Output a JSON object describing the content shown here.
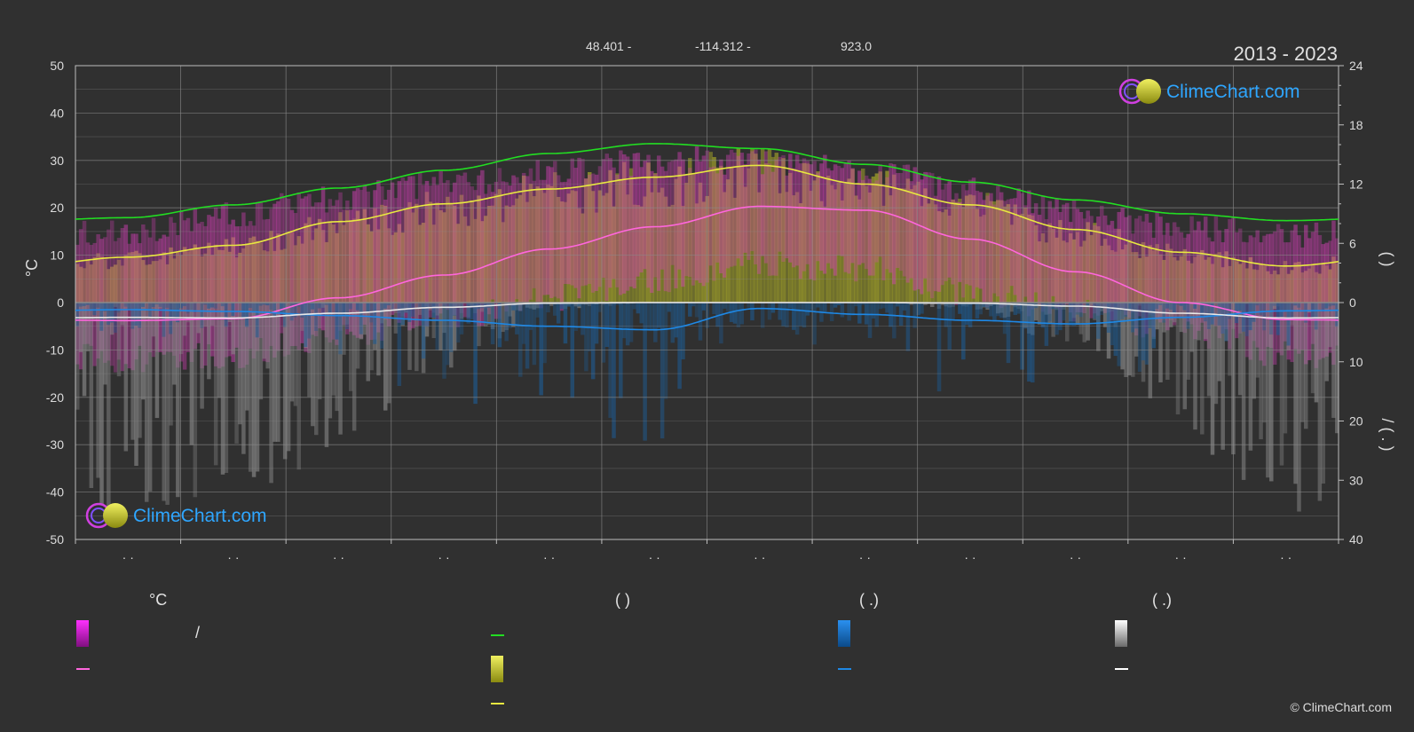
{
  "header": {
    "lat": "48.401 -",
    "lon": "-114.312 -",
    "elev": "923.0",
    "years": "2013 - 2023"
  },
  "brand": {
    "name": "ClimeChart.com",
    "copyright": "© ClimeChart.com"
  },
  "axis": {
    "left_unit": "°C",
    "right_label_top": "(   )",
    "right_label_bottom": "/    (   .   )"
  },
  "legend": {
    "col1": {
      "header": "°C",
      "text": "/"
    },
    "col2": {
      "header": "(          )"
    },
    "col3": {
      "header": "(    .)"
    },
    "col4": {
      "header": "(    .)"
    }
  },
  "colors": {
    "background": "#303030",
    "daylight": "#22dd22",
    "sunshine": "#e8e840",
    "temp_avg": "#ff66dd",
    "temp_range": "#e010e0",
    "rain": "#1e88e5",
    "snow": "#e8e8e8"
  },
  "chart_data": {
    "type": "line",
    "title": "2013 - 2023",
    "x_ticks": [
      "· ·",
      "· ·",
      "· ·",
      "· ·",
      "· ·",
      "· ·",
      "· ·",
      "· ·",
      "· ·",
      "· ·",
      "· ·",
      "· ·"
    ],
    "y_left": {
      "label": "°C",
      "range": [
        -50,
        50
      ],
      "ticks": [
        50,
        40,
        30,
        20,
        10,
        0,
        -10,
        -20,
        -30,
        -40,
        -50
      ]
    },
    "y_right_top": {
      "range": [
        0,
        24
      ],
      "ticks": [
        24,
        18,
        12,
        6,
        0
      ]
    },
    "y_right_bottom": {
      "range": [
        0,
        40
      ],
      "ticks": [
        10,
        20,
        30,
        40
      ]
    },
    "grid": true,
    "series": [
      {
        "key": "daylight",
        "axis": "right_top",
        "values": [
          8.6,
          9.9,
          11.6,
          13.4,
          15.1,
          16.1,
          15.6,
          14.0,
          12.2,
          10.4,
          9.0,
          8.3
        ]
      },
      {
        "key": "sunshine",
        "axis": "right_top",
        "values": [
          4.6,
          5.8,
          8.2,
          10.0,
          11.5,
          12.7,
          13.9,
          12.0,
          9.9,
          7.4,
          5.1,
          3.7
        ]
      },
      {
        "key": "temp_mean",
        "axis": "left",
        "values": [
          -3.8,
          -3.4,
          1.0,
          5.8,
          11.3,
          16.0,
          20.3,
          19.5,
          13.4,
          6.5,
          0.0,
          -3.6
        ]
      },
      {
        "key": "temp_max_range",
        "axis": "left",
        "values": [
          15,
          19,
          22,
          25,
          28,
          30,
          30,
          28,
          24,
          19,
          16,
          14
        ]
      },
      {
        "key": "temp_min_range",
        "axis": "left",
        "values": [
          -12,
          -11,
          -7,
          -3,
          1,
          5,
          8,
          7,
          2,
          -2,
          -6,
          -11
        ]
      },
      {
        "key": "rain",
        "axis": "right_bottom",
        "values": [
          1.2,
          1.5,
          2.2,
          3.0,
          4.0,
          4.6,
          1.0,
          2.0,
          3.0,
          3.6,
          2.5,
          1.4
        ]
      },
      {
        "key": "snow",
        "axis": "right_bottom",
        "values": [
          2.5,
          2.6,
          1.8,
          0.8,
          0.1,
          0.0,
          0.0,
          0.0,
          0.1,
          0.6,
          1.8,
          2.6
        ]
      }
    ]
  }
}
